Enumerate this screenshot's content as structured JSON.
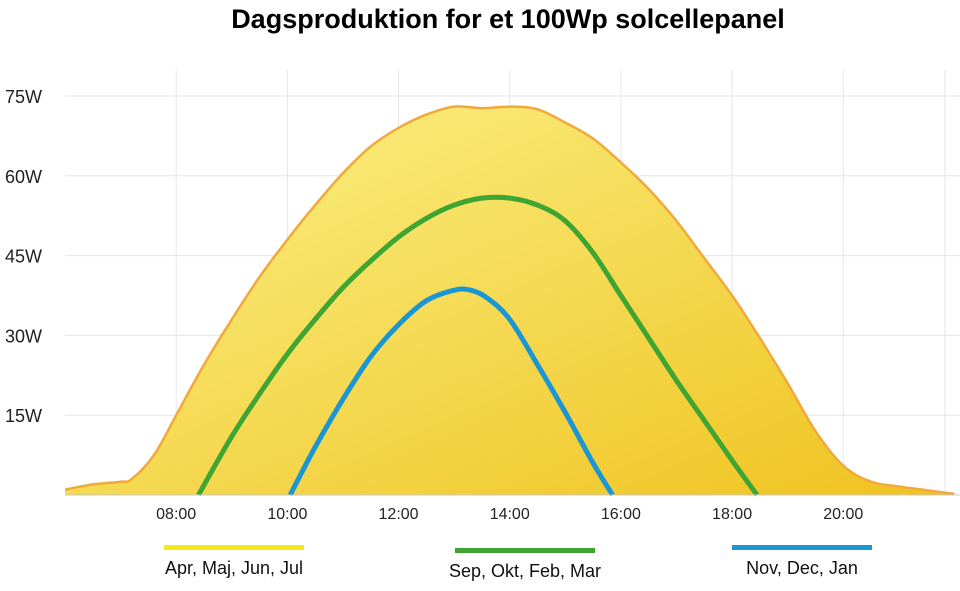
{
  "chart_data": {
    "type": "area",
    "title": "Dagsproduktion for et 100Wp solcellepanel",
    "xlabel": "",
    "ylabel": "",
    "x_range_hours": [
      6,
      22.1
    ],
    "ylim": [
      0,
      75
    ],
    "y_ticks": [
      {
        "value": 15,
        "label": "15W"
      },
      {
        "value": 30,
        "label": "30W"
      },
      {
        "value": 45,
        "label": "45W"
      },
      {
        "value": 60,
        "label": "60W"
      },
      {
        "value": 75,
        "label": "75W"
      }
    ],
    "x_ticks": [
      {
        "value": 8,
        "label": "08:00"
      },
      {
        "value": 10,
        "label": "10:00"
      },
      {
        "value": 12,
        "label": "12:00"
      },
      {
        "value": 14,
        "label": "14:00"
      },
      {
        "value": 16,
        "label": "16:00"
      },
      {
        "value": 18,
        "label": "18:00"
      },
      {
        "value": 20,
        "label": "20:00"
      }
    ],
    "series": [
      {
        "name": "Apr, Maj, Jun, Jul",
        "color": "#f7e81a",
        "stroke": "#f2a93b",
        "fill_top": "#fbf28a",
        "fill_bottom": "#efc21e",
        "x": [
          6.0,
          6.5,
          7.0,
          7.2,
          7.6,
          8.0,
          8.5,
          9.0,
          9.5,
          10.0,
          10.5,
          11.0,
          11.5,
          12.0,
          12.5,
          13.0,
          13.5,
          14.0,
          14.5,
          15.0,
          15.5,
          16.0,
          16.5,
          17.0,
          17.5,
          18.0,
          18.5,
          19.0,
          19.5,
          20.0,
          20.5,
          21.0,
          21.5,
          22.0
        ],
        "values": [
          1.0,
          2.0,
          2.5,
          3.0,
          7.5,
          15.0,
          24.5,
          33.0,
          41.0,
          48.0,
          54.5,
          60.5,
          65.5,
          69.0,
          71.5,
          73.0,
          72.7,
          73.0,
          72.5,
          70.0,
          67.0,
          62.5,
          57.5,
          51.5,
          44.5,
          37.5,
          29.5,
          21.0,
          12.0,
          5.5,
          2.5,
          1.6,
          0.9,
          0.2
        ]
      },
      {
        "name": "Sep, Okt, Feb, Mar",
        "color": "#3fa532",
        "x": [
          8.4,
          9.0,
          9.5,
          10.0,
          10.5,
          11.0,
          11.5,
          12.0,
          12.5,
          13.0,
          13.5,
          14.0,
          14.5,
          15.0,
          15.5,
          16.0,
          16.5,
          17.0,
          17.5,
          18.0,
          18.45
        ],
        "values": [
          0,
          11.0,
          19.0,
          26.5,
          33.0,
          39.0,
          44.0,
          48.5,
          52.0,
          54.5,
          55.8,
          55.8,
          54.5,
          51.5,
          45.5,
          37.5,
          29.5,
          21.5,
          14.0,
          6.5,
          0
        ]
      },
      {
        "name": "Nov, Dec, Jan",
        "color": "#1a96d4",
        "x": [
          10.05,
          10.5,
          11.0,
          11.5,
          12.0,
          12.5,
          13.0,
          13.3,
          13.6,
          14.0,
          14.5,
          15.0,
          15.5,
          15.85
        ],
        "values": [
          0,
          9.0,
          18.0,
          26.0,
          32.0,
          36.5,
          38.5,
          38.5,
          37.0,
          33.0,
          24.5,
          15.5,
          6.0,
          0
        ]
      }
    ],
    "legend_position": "bottom",
    "grid": true
  }
}
